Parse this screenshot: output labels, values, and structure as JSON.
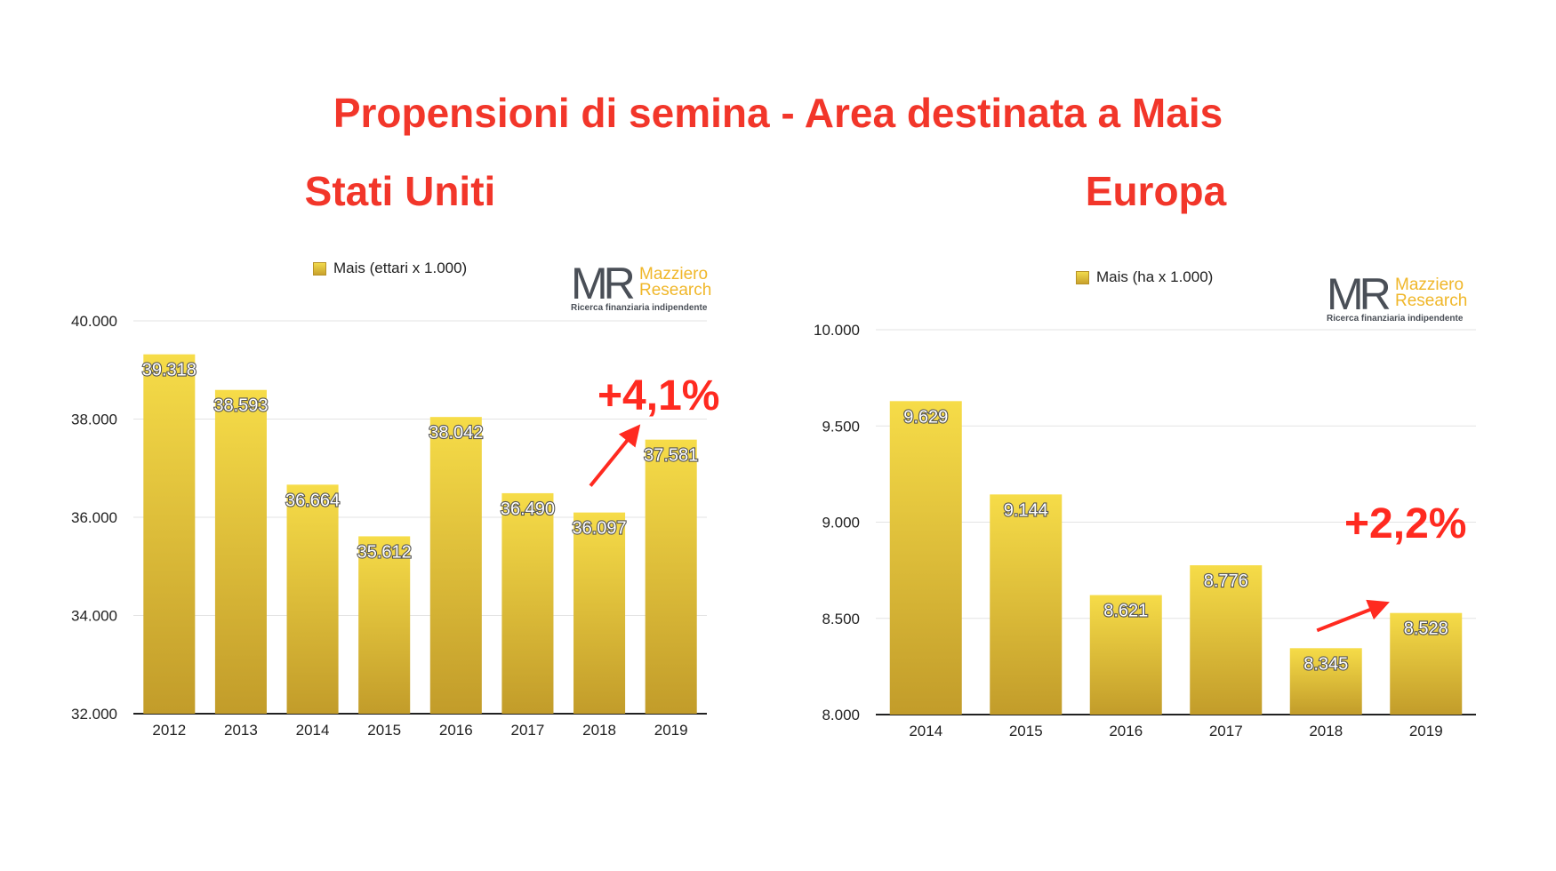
{
  "page": {
    "title": "Propensioni di semina - Area destinata a Mais",
    "logo": {
      "initials": "MR",
      "brand_line1": "Mazziero",
      "brand_line2": "Research",
      "tagline": "Ricerca finanziaria indipendente"
    }
  },
  "colors": {
    "title": "#f2362a",
    "annotation": "#ff2a20",
    "bar_top": "#f6dc48",
    "bar_bottom": "#c29c2a",
    "logo_gray": "#4a4f57",
    "logo_gold": "#f0b72a"
  },
  "chart_data": [
    {
      "type": "bar",
      "title": "Stati Uniti",
      "legend": "Mais (ettari x 1.000)",
      "legend_position": "top",
      "categories": [
        "2012",
        "2013",
        "2014",
        "2015",
        "2016",
        "2017",
        "2018",
        "2019"
      ],
      "values": [
        39318,
        38593,
        36664,
        35612,
        38042,
        36490,
        36097,
        37581
      ],
      "value_labels": [
        "39.318",
        "38.593",
        "36.664",
        "35.612",
        "38.042",
        "36.490",
        "36.097",
        "37.581"
      ],
      "ylim": [
        32000,
        40000
      ],
      "yticks": [
        32000,
        34000,
        36000,
        38000,
        40000
      ],
      "ytick_labels": [
        "32.000",
        "34.000",
        "36.000",
        "38.000",
        "40.000"
      ],
      "grid": true,
      "annotation": {
        "text": "+4,1%",
        "from": "2018",
        "to": "2019"
      }
    },
    {
      "type": "bar",
      "title": "Europa",
      "legend": "Mais (ha x 1.000)",
      "legend_position": "top",
      "categories": [
        "2014",
        "2015",
        "2016",
        "2017",
        "2018",
        "2019"
      ],
      "values": [
        9629,
        9144,
        8621,
        8776,
        8345,
        8528
      ],
      "value_labels": [
        "9.629",
        "9.144",
        "8.621",
        "8.776",
        "8.345",
        "8.528"
      ],
      "ylim": [
        8000,
        10000
      ],
      "yticks": [
        8000,
        8500,
        9000,
        9500,
        10000
      ],
      "ytick_labels": [
        "8.000",
        "8.500",
        "9.000",
        "9.500",
        "10.000"
      ],
      "grid": true,
      "annotation": {
        "text": "+2,2%",
        "from": "2018",
        "to": "2019"
      }
    }
  ]
}
